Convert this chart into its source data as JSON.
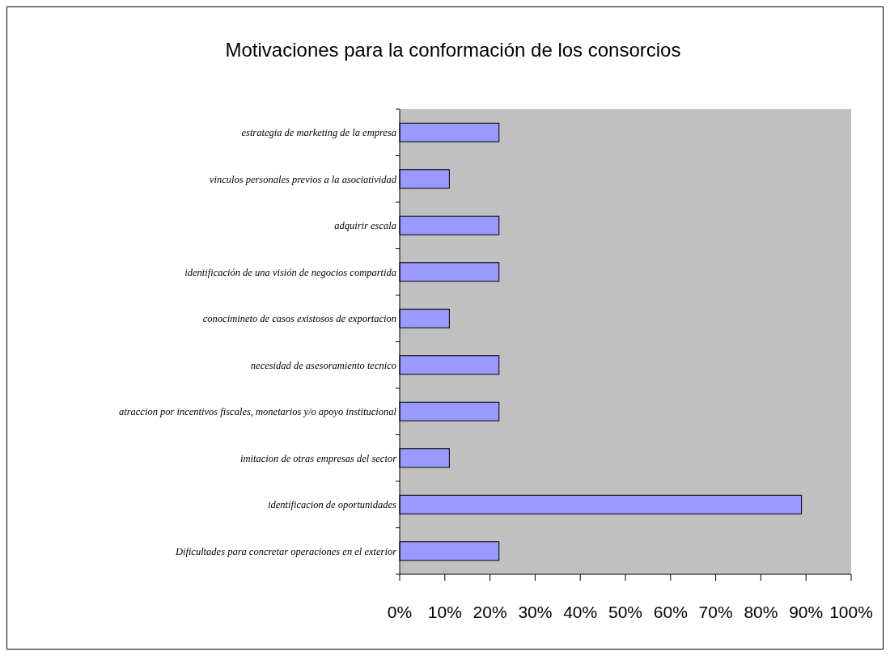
{
  "chart_data": {
    "type": "bar",
    "orientation": "horizontal",
    "title": "Motivaciones para la conformación de los consorcios",
    "categories": [
      "estrategia de marketing de la empresa",
      "vinculos personales previos a la asociatividad",
      "adquirir escala",
      "identificación de una visión de negocios compartida",
      "conocimineto de casos existosos de exportacion",
      "necesidad de asesoramiento tecnico",
      "atraccion por incentivos fiscales, monetarios y/o apoyo institucional",
      "imitacion de otras empresas del sector",
      "identificacion de oportunidades",
      "Dificultades para concretar operaciones en el exterior"
    ],
    "values": [
      22,
      11,
      22,
      22,
      11,
      22,
      22,
      11,
      89,
      22
    ],
    "color": "#9999ff",
    "xlim": [
      0,
      100
    ],
    "xticks": [
      {
        "value": 0,
        "label": "0%"
      },
      {
        "value": 10,
        "label": "10%"
      },
      {
        "value": 20,
        "label": "20%"
      },
      {
        "value": 30,
        "label": "30%"
      },
      {
        "value": 40,
        "label": "40%"
      },
      {
        "value": 50,
        "label": "50%"
      },
      {
        "value": 60,
        "label": "60%"
      },
      {
        "value": 70,
        "label": "70%"
      },
      {
        "value": 80,
        "label": "80%"
      },
      {
        "value": 90,
        "label": "90%"
      },
      {
        "value": 100,
        "label": "100%"
      }
    ],
    "grid": false
  }
}
